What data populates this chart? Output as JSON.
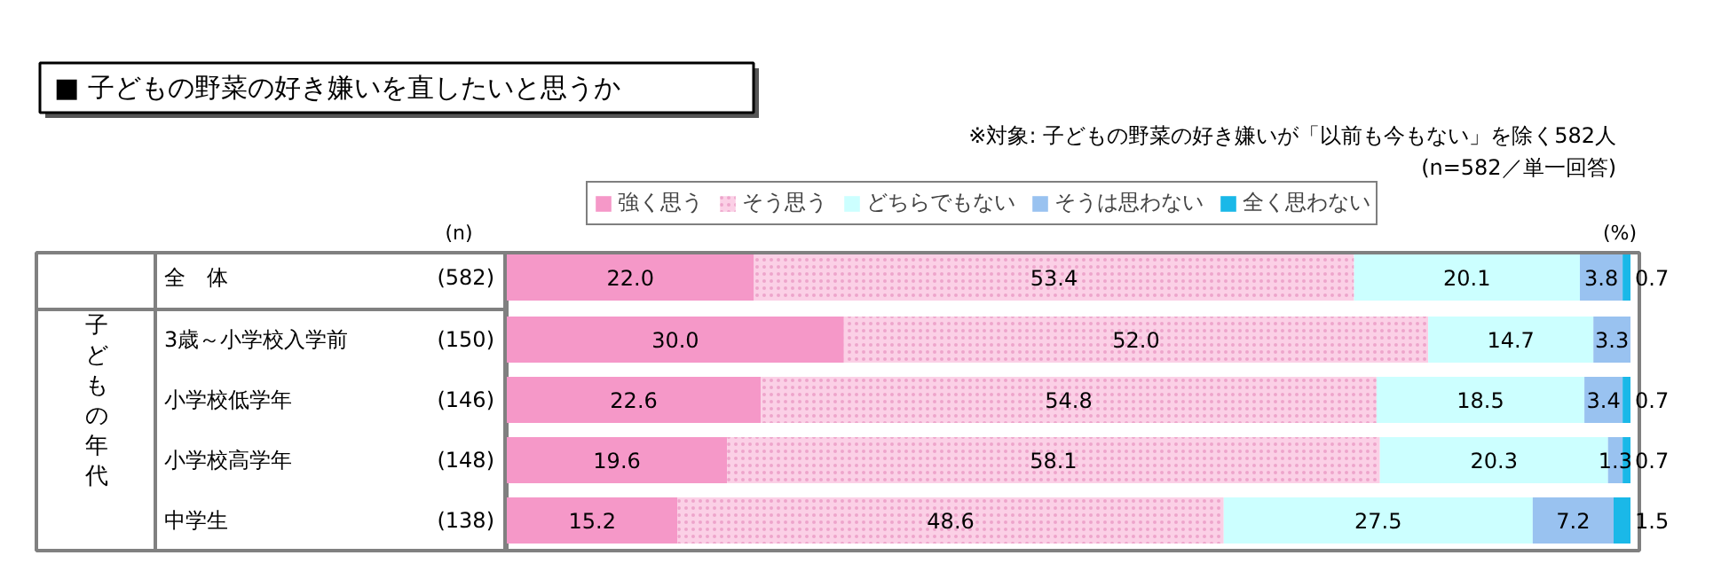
{
  "chart_data": {
    "type": "bar",
    "orientation": "horizontal",
    "stacked": true,
    "title": "■ 子どもの野菜の好き嫌いを直したいと思うか",
    "categories": [
      "全　体",
      "3歳～小学校入学前",
      "小学校低学年",
      "小学校高学年",
      "中学生"
    ],
    "series": [
      {
        "name": "強く思う",
        "color": "#f598c8",
        "values": [
          22.0,
          30.0,
          22.6,
          19.6,
          15.2
        ],
        "value_labels": [
          "22.0",
          "30.0",
          "22.6",
          "19.6",
          "15.2"
        ]
      },
      {
        "name": "そう思う",
        "color": "#fbd0e6",
        "values": [
          53.4,
          52.0,
          54.8,
          58.1,
          48.6
        ],
        "value_labels": [
          "53.4",
          "52.0",
          "54.8",
          "58.1",
          "48.6"
        ]
      },
      {
        "name": "どちらでもない",
        "color": "#ccffff",
        "values": [
          20.1,
          14.7,
          18.5,
          20.3,
          27.5
        ],
        "value_labels": [
          "20.1",
          "14.7",
          "18.5",
          "20.3",
          "27.5"
        ]
      },
      {
        "name": "そうは思わない",
        "color": "#99c2f0",
        "values": [
          3.8,
          3.3,
          3.4,
          1.3,
          7.2
        ],
        "value_labels": [
          "3.8",
          "3.3",
          "3.4",
          "1.3",
          "7.2"
        ]
      },
      {
        "name": "全く思わない",
        "color": "#1ab8e8",
        "values": [
          0.7,
          0.0,
          0.7,
          0.7,
          1.5
        ],
        "value_labels": [
          "0.7",
          null,
          "0.7",
          "0.7",
          "1.5"
        ]
      }
    ],
    "xlim": [
      0,
      100
    ],
    "tick_labels": false,
    "legend": "top",
    "grid": false,
    "annotations": [
      "※対象: 子どもの野菜の好き嫌いが「以前も今もない」を除く582人",
      "(n=582／単一回答)",
      "(n)",
      "(%)",
      "子どもの年代",
      "(582)",
      "(150)",
      "(146)",
      "(148)",
      "(138)"
    ]
  }
}
